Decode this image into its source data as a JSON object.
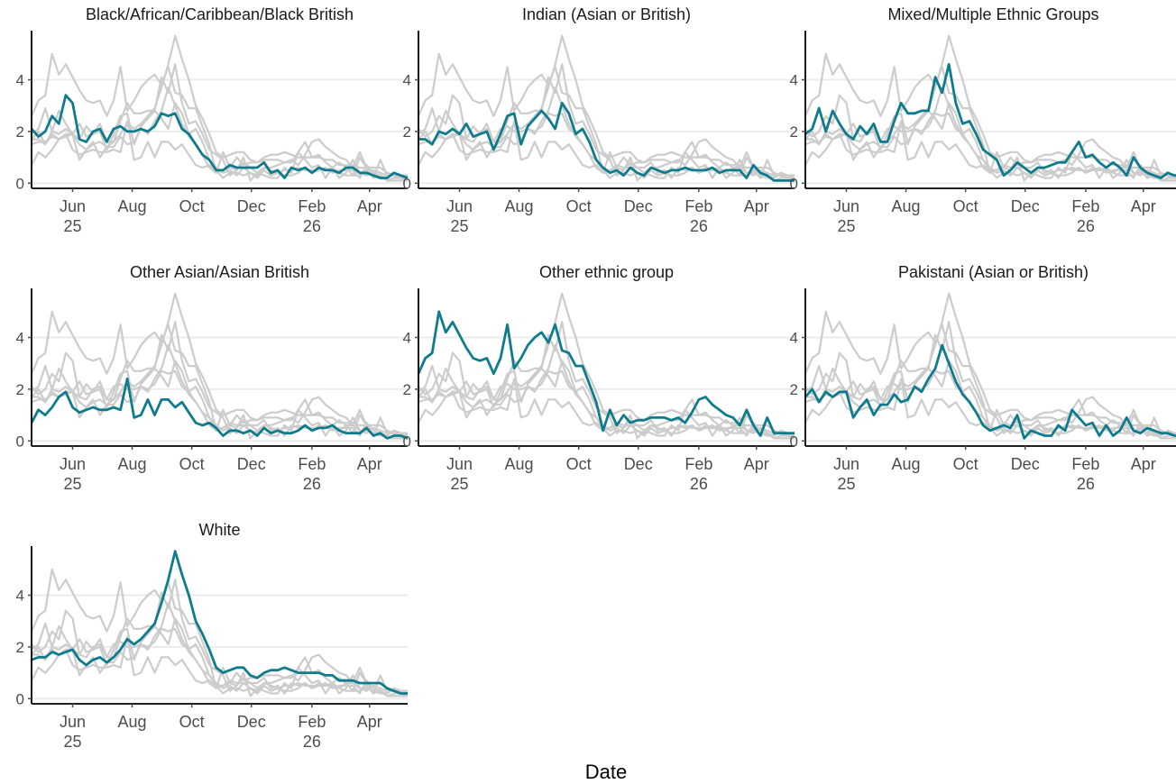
{
  "colors": {
    "highlight": "#0E7C8C",
    "context": "#CCCCCC",
    "grid": "#EBEBEB",
    "axis": "#000000",
    "tick_text": "#4D4D4D"
  },
  "chart_data": {
    "type": "line",
    "layout": "small multiples, 3 columns; the panel's group is highlighted, all other groups shown in grey",
    "xlabel": "Date",
    "ylabel": "",
    "x_axis": {
      "start": "2025-04-20",
      "end": "2026-05-10",
      "ticks": [
        {
          "date": "2025-06-01",
          "label": "Jun",
          "sub": "25"
        },
        {
          "date": "2025-08-01",
          "label": "Aug",
          "sub": ""
        },
        {
          "date": "2025-10-01",
          "label": "Oct",
          "sub": ""
        },
        {
          "date": "2025-12-01",
          "label": "Dec",
          "sub": ""
        },
        {
          "date": "2026-02-01",
          "label": "Feb",
          "sub": "26"
        },
        {
          "date": "2026-04-01",
          "label": "Apr",
          "sub": ""
        }
      ]
    },
    "y_axis": {
      "ylim": [
        -0.2,
        5.9
      ],
      "ticks": [
        0,
        2,
        4
      ]
    },
    "grid": "horizontal major only",
    "x": [
      "2025-04-20",
      "2025-04-27",
      "2025-05-04",
      "2025-05-11",
      "2025-05-18",
      "2025-05-25",
      "2025-06-01",
      "2025-06-08",
      "2025-06-15",
      "2025-06-22",
      "2025-06-29",
      "2025-07-06",
      "2025-07-13",
      "2025-07-20",
      "2025-07-27",
      "2025-08-03",
      "2025-08-10",
      "2025-08-17",
      "2025-08-24",
      "2025-08-31",
      "2025-09-07",
      "2025-09-14",
      "2025-09-21",
      "2025-09-28",
      "2025-10-05",
      "2025-10-12",
      "2025-10-19",
      "2025-10-26",
      "2025-11-02",
      "2025-11-09",
      "2025-11-16",
      "2025-11-23",
      "2025-11-30",
      "2025-12-07",
      "2025-12-14",
      "2025-12-21",
      "2025-12-28",
      "2026-01-04",
      "2026-01-11",
      "2026-01-18",
      "2026-01-25",
      "2026-02-01",
      "2026-02-08",
      "2026-02-15",
      "2026-02-22",
      "2026-03-01",
      "2026-03-08",
      "2026-03-15",
      "2026-03-22",
      "2026-03-29",
      "2026-04-05",
      "2026-04-12",
      "2026-04-19",
      "2026-04-26",
      "2026-05-03",
      "2026-05-10"
    ],
    "series": [
      {
        "name": "Black/African/Caribbean/Black British",
        "values": [
          2.1,
          1.8,
          2.0,
          2.6,
          2.3,
          3.4,
          3.1,
          1.7,
          1.6,
          2.0,
          2.1,
          1.6,
          2.1,
          2.2,
          2.0,
          2.0,
          2.1,
          2.0,
          2.2,
          2.7,
          2.6,
          2.7,
          2.1,
          1.9,
          1.5,
          1.1,
          0.9,
          0.5,
          0.5,
          0.7,
          0.6,
          0.6,
          0.6,
          0.6,
          0.8,
          0.4,
          0.5,
          0.2,
          0.6,
          0.5,
          0.6,
          0.4,
          0.6,
          0.5,
          0.5,
          0.4,
          0.6,
          0.6,
          0.4,
          0.4,
          0.3,
          0.2,
          0.2,
          0.4,
          0.3,
          0.2
        ]
      },
      {
        "name": "Indian (Asian or British)",
        "values": [
          1.7,
          1.7,
          1.5,
          2.0,
          1.9,
          2.1,
          1.9,
          2.3,
          1.8,
          1.9,
          2.0,
          1.3,
          1.9,
          2.6,
          2.7,
          1.5,
          2.2,
          2.5,
          2.8,
          2.5,
          2.1,
          3.1,
          2.7,
          1.9,
          2.1,
          1.6,
          0.9,
          0.6,
          0.4,
          0.5,
          0.3,
          0.6,
          0.4,
          0.3,
          0.6,
          0.5,
          0.4,
          0.5,
          0.5,
          0.6,
          0.5,
          0.5,
          0.5,
          0.6,
          0.4,
          0.5,
          0.5,
          0.5,
          0.2,
          0.7,
          0.4,
          0.3,
          0.1,
          0.1,
          0.1,
          0.1
        ]
      },
      {
        "name": "Mixed/Multiple Ethnic Groups",
        "values": [
          1.9,
          2.1,
          2.9,
          2.0,
          2.8,
          2.3,
          1.9,
          1.7,
          2.2,
          1.9,
          2.3,
          1.6,
          1.6,
          2.4,
          3.1,
          2.7,
          2.7,
          2.8,
          2.8,
          4.1,
          3.5,
          4.6,
          3.1,
          2.3,
          2.4,
          1.9,
          1.3,
          1.1,
          0.9,
          0.3,
          0.5,
          0.8,
          0.6,
          0.4,
          0.6,
          0.6,
          0.7,
          0.8,
          0.8,
          1.2,
          1.6,
          1.0,
          1.1,
          0.8,
          0.6,
          0.8,
          0.6,
          0.3,
          1.0,
          0.6,
          0.4,
          0.3,
          0.2,
          0.4,
          0.3,
          0.3
        ]
      },
      {
        "name": "Other Asian/Asian British",
        "values": [
          0.7,
          1.2,
          1.0,
          1.3,
          1.7,
          1.9,
          1.3,
          1.1,
          1.2,
          1.3,
          1.2,
          1.2,
          1.3,
          1.2,
          2.4,
          0.9,
          1.0,
          1.6,
          1.0,
          1.6,
          1.6,
          1.3,
          1.5,
          1.1,
          0.7,
          0.6,
          0.7,
          0.5,
          0.2,
          0.4,
          0.4,
          0.3,
          0.4,
          0.2,
          0.5,
          0.3,
          0.4,
          0.3,
          0.3,
          0.4,
          0.6,
          0.4,
          0.5,
          0.5,
          0.6,
          0.4,
          0.3,
          0.3,
          0.3,
          0.5,
          0.2,
          0.3,
          0.1,
          0.2,
          0.2,
          0.1
        ]
      },
      {
        "name": "Other ethnic group",
        "values": [
          2.6,
          3.2,
          3.4,
          5.0,
          4.2,
          4.6,
          4.1,
          3.6,
          3.2,
          3.1,
          3.2,
          2.6,
          3.2,
          4.5,
          2.8,
          3.2,
          3.7,
          4.0,
          4.2,
          3.8,
          4.5,
          3.5,
          3.4,
          2.9,
          2.9,
          2.2,
          1.5,
          0.4,
          1.2,
          0.6,
          1.0,
          0.7,
          0.8,
          0.8,
          0.9,
          0.9,
          0.9,
          0.8,
          0.9,
          0.7,
          1.1,
          1.6,
          1.7,
          1.4,
          1.2,
          1.0,
          0.9,
          0.6,
          1.2,
          0.6,
          0.2,
          0.9,
          0.3,
          0.3,
          0.3,
          0.3
        ]
      },
      {
        "name": "Pakistani (Asian or British)",
        "values": [
          1.7,
          2.0,
          1.5,
          1.9,
          1.7,
          1.9,
          1.9,
          0.9,
          1.3,
          1.6,
          1.0,
          1.4,
          1.4,
          1.8,
          1.5,
          1.6,
          2.1,
          1.9,
          2.4,
          2.8,
          3.7,
          3.0,
          2.3,
          1.8,
          1.5,
          1.1,
          0.6,
          0.4,
          0.5,
          0.6,
          0.5,
          1.0,
          0.1,
          0.4,
          0.3,
          0.2,
          0.2,
          0.6,
          0.4,
          1.2,
          0.9,
          0.6,
          0.7,
          0.2,
          0.6,
          0.2,
          0.4,
          0.9,
          0.4,
          0.3,
          0.5,
          0.4,
          0.3,
          0.3,
          0.2,
          0.2
        ]
      },
      {
        "name": "White",
        "values": [
          1.5,
          1.6,
          1.6,
          1.8,
          1.7,
          1.8,
          1.9,
          1.5,
          1.3,
          1.5,
          1.6,
          1.4,
          1.6,
          1.9,
          2.3,
          2.1,
          2.3,
          2.6,
          2.9,
          3.7,
          4.6,
          5.7,
          4.8,
          4.0,
          3.0,
          2.5,
          1.9,
          1.2,
          1.0,
          1.1,
          1.2,
          1.2,
          0.9,
          0.8,
          1.0,
          1.1,
          1.1,
          1.2,
          1.1,
          1.0,
          1.0,
          1.0,
          1.0,
          0.9,
          0.9,
          0.7,
          0.7,
          0.7,
          0.6,
          0.6,
          0.6,
          0.6,
          0.4,
          0.3,
          0.2,
          0.2
        ]
      }
    ]
  }
}
